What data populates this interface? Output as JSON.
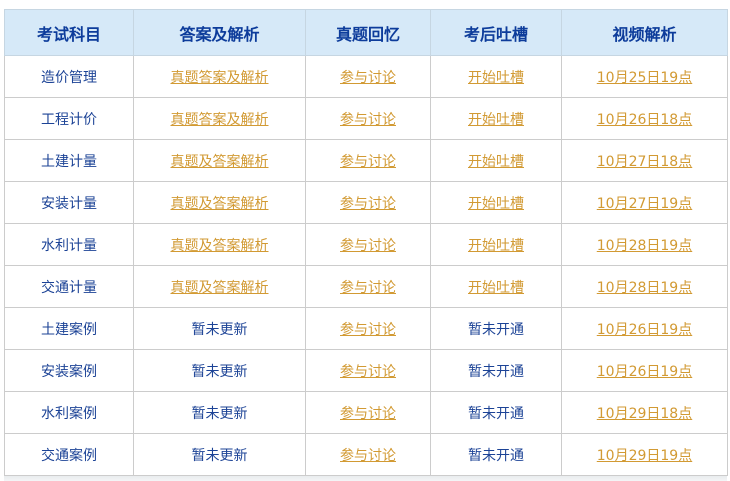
{
  "table": {
    "headers": [
      "考试科目",
      "答案及解析",
      "真题回忆",
      "考后吐槽",
      "视频解析"
    ],
    "rows": [
      {
        "subject": "造价管理",
        "answers": "真题答案及解析",
        "recall": "参与讨论",
        "comments": "开始吐槽",
        "video": "10月25日19点",
        "answers_is_link": true,
        "comments_is_link": true
      },
      {
        "subject": "工程计价",
        "answers": "真题答案及解析",
        "recall": "参与讨论",
        "comments": "开始吐槽",
        "video": "10月26日18点",
        "answers_is_link": true,
        "comments_is_link": true
      },
      {
        "subject": "土建计量",
        "answers": "真题及答案解析",
        "recall": "参与讨论",
        "comments": "开始吐槽",
        "video": "10月27日18点",
        "answers_is_link": true,
        "comments_is_link": true
      },
      {
        "subject": "安装计量",
        "answers": "真题及答案解析",
        "recall": "参与讨论",
        "comments": "开始吐槽",
        "video": "10月27日19点",
        "answers_is_link": true,
        "comments_is_link": true
      },
      {
        "subject": "水利计量",
        "answers": "真题及答案解析",
        "recall": "参与讨论",
        "comments": "开始吐槽",
        "video": "10月28日19点",
        "answers_is_link": true,
        "comments_is_link": true
      },
      {
        "subject": "交通计量",
        "answers": "真题及答案解析",
        "recall": "参与讨论",
        "comments": "开始吐槽",
        "video": "10月28日19点",
        "answers_is_link": true,
        "comments_is_link": true
      },
      {
        "subject": "土建案例",
        "answers": "暂未更新",
        "recall": "参与讨论",
        "comments": "暂未开通",
        "video": "10月26日19点",
        "answers_is_link": false,
        "comments_is_link": false
      },
      {
        "subject": "安装案例",
        "answers": "暂未更新",
        "recall": "参与讨论",
        "comments": "暂未开通",
        "video": "10月26日19点",
        "answers_is_link": false,
        "comments_is_link": false
      },
      {
        "subject": "水利案例",
        "answers": "暂未更新",
        "recall": "参与讨论",
        "comments": "暂未开通",
        "video": "10月29日18点",
        "answers_is_link": false,
        "comments_is_link": false
      },
      {
        "subject": "交通案例",
        "answers": "暂未更新",
        "recall": "参与讨论",
        "comments": "暂未开通",
        "video": "10月29日19点",
        "answers_is_link": false,
        "comments_is_link": false
      }
    ]
  },
  "colors": {
    "header_background": "#d6e9f8",
    "header_text": "#0d3c9b",
    "body_text": "#1c4396",
    "link": "#d29a33",
    "border": "#cccccc"
  }
}
